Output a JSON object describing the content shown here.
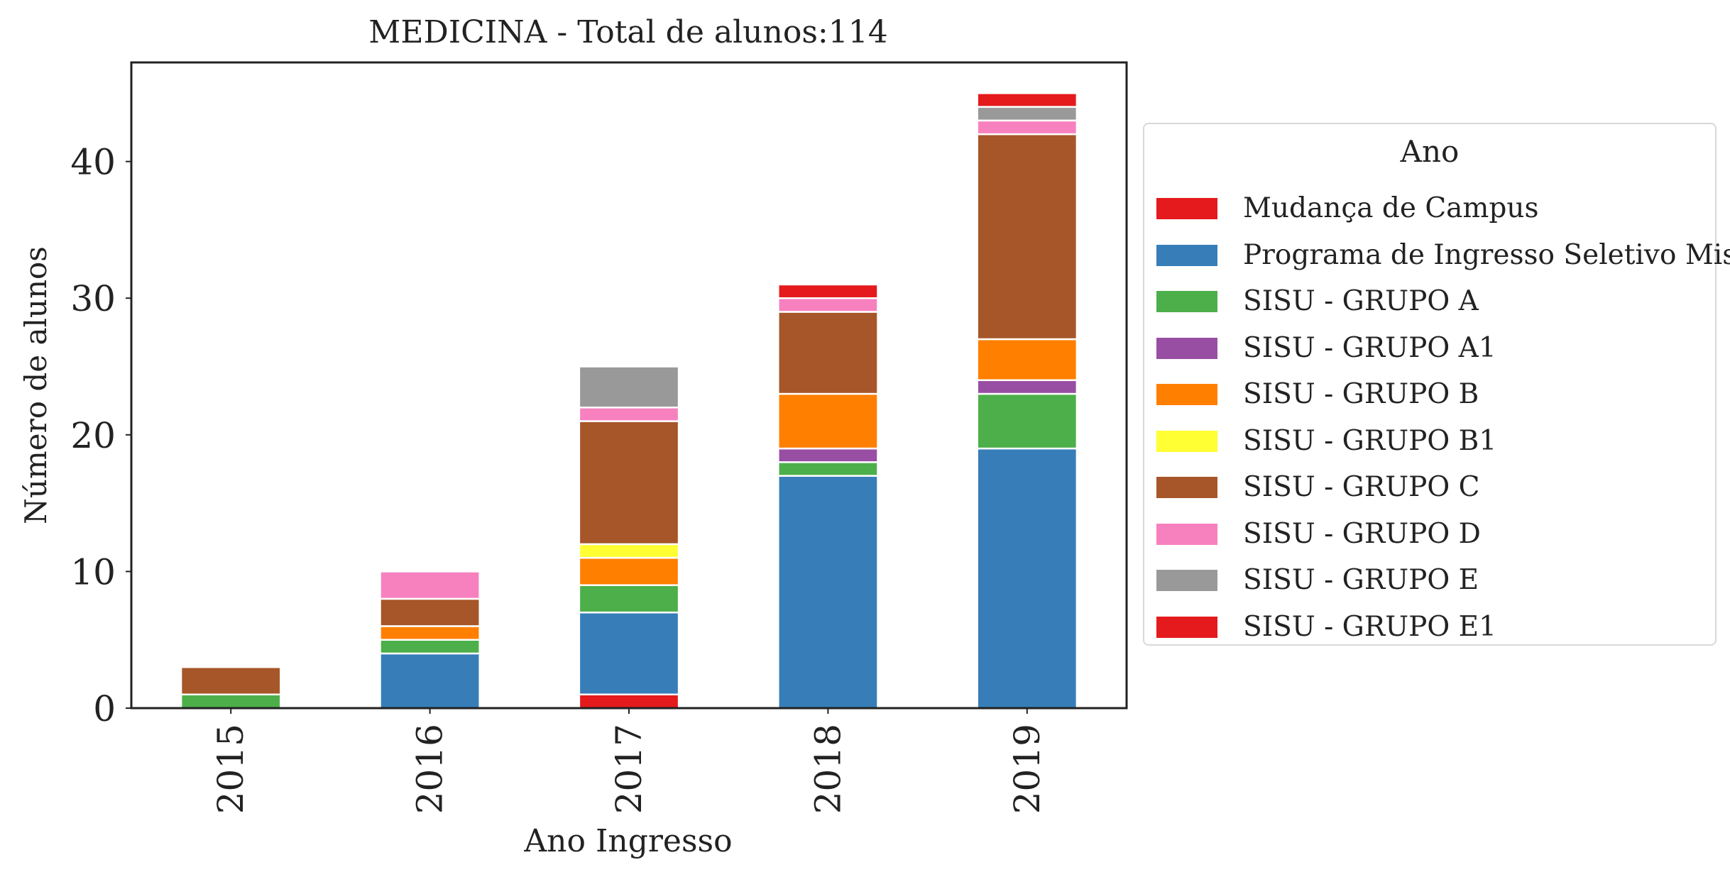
{
  "chart_data": {
    "type": "bar",
    "stacked": true,
    "title": "MEDICINA - Total de alunos:114",
    "xlabel": "Ano Ingresso",
    "ylabel": "Número de alunos",
    "ylim": [
      0,
      47.25
    ],
    "yticks": [
      0,
      10,
      20,
      30,
      40
    ],
    "categories": [
      "2015",
      "2016",
      "2017",
      "2018",
      "2019"
    ],
    "grid": false,
    "legend": {
      "title": "Ano",
      "placement": "outside-right"
    },
    "series": [
      {
        "name": "Mudança de Campus",
        "color": "#e41a1c",
        "values": [
          0,
          0,
          1,
          0,
          0
        ]
      },
      {
        "name": "Programa de Ingresso Seletivo Misto",
        "color": "#377eb8",
        "values": [
          0,
          4,
          6,
          17,
          19
        ]
      },
      {
        "name": "SISU - GRUPO A",
        "color": "#4daf4a",
        "values": [
          1,
          1,
          2,
          1,
          4
        ]
      },
      {
        "name": "SISU - GRUPO A1",
        "color": "#984ea3",
        "values": [
          0,
          0,
          0,
          1,
          1
        ]
      },
      {
        "name": "SISU - GRUPO B",
        "color": "#ff7f00",
        "values": [
          0,
          1,
          2,
          4,
          3
        ]
      },
      {
        "name": "SISU - GRUPO B1",
        "color": "#ffff33",
        "values": [
          0,
          0,
          1,
          0,
          0
        ]
      },
      {
        "name": "SISU - GRUPO C",
        "color": "#a65628",
        "values": [
          2,
          2,
          9,
          6,
          15
        ]
      },
      {
        "name": "SISU - GRUPO D",
        "color": "#f781bf",
        "values": [
          0,
          2,
          1,
          1,
          1
        ]
      },
      {
        "name": "SISU - GRUPO E",
        "color": "#999999",
        "values": [
          0,
          0,
          3,
          0,
          1
        ]
      },
      {
        "name": "SISU - GRUPO E1",
        "color": "#e41a1c",
        "values": [
          0,
          0,
          0,
          1,
          1
        ]
      }
    ]
  }
}
